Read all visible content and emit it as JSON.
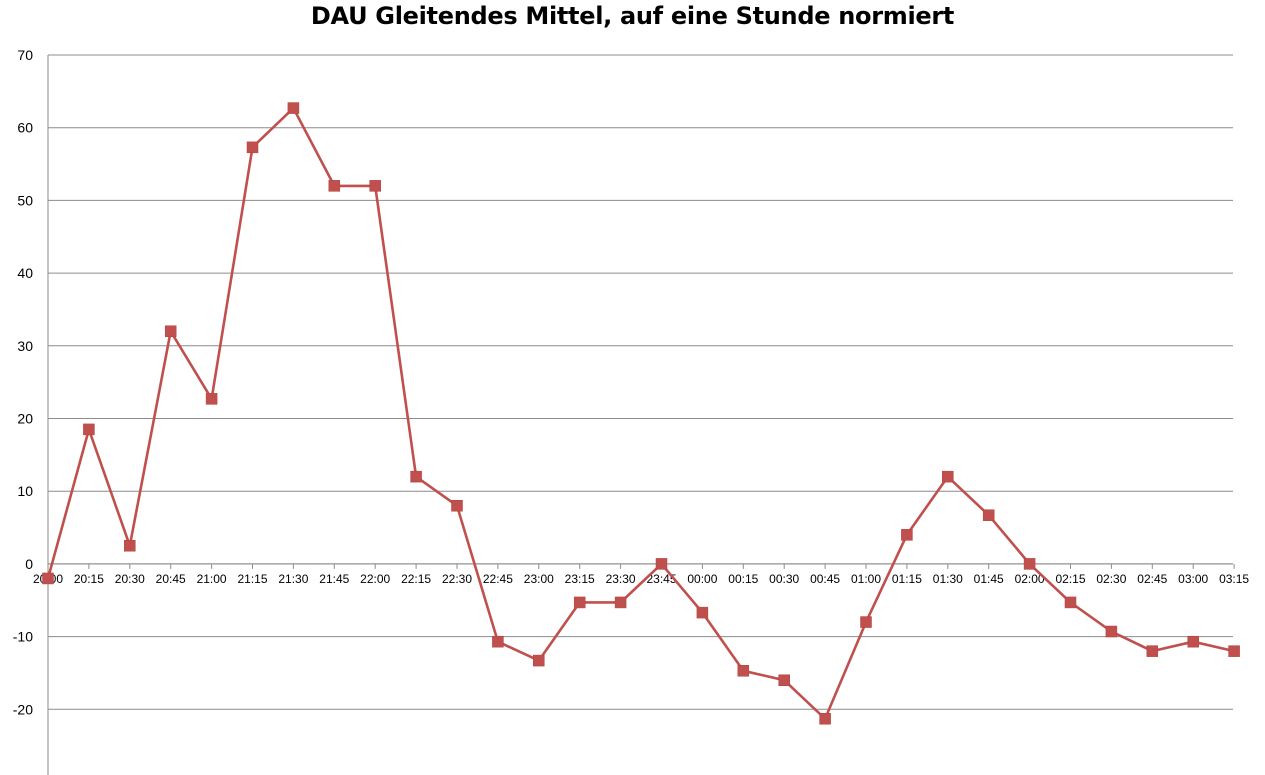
{
  "chart_data": {
    "type": "line",
    "title": "DAU Gleitendes Mittel, auf eine Stunde normiert",
    "xlabel": "",
    "ylabel": "",
    "ylim": [
      -30,
      70
    ],
    "ytick_step": 10,
    "grid": true,
    "legend": "none",
    "categories": [
      "20:00",
      "20:15",
      "20:30",
      "20:45",
      "21:00",
      "21:15",
      "21:30",
      "21:45",
      "22:00",
      "22:15",
      "22:30",
      "22:45",
      "23:00",
      "23:15",
      "23:30",
      "23:45",
      "00:00",
      "00:15",
      "00:30",
      "00:45",
      "01:00",
      "01:15",
      "01:30",
      "01:45",
      "02:00",
      "02:15",
      "02:30",
      "02:45",
      "03:00",
      "03:15"
    ],
    "series": [
      {
        "color": "#c0504d",
        "marker": "square",
        "values": [
          -2,
          18.5,
          2.5,
          32,
          22.7,
          57.3,
          62.7,
          52,
          52,
          12,
          8,
          -10.7,
          -13.3,
          -5.3,
          -5.3,
          0,
          -6.7,
          -14.7,
          -16,
          -21.3,
          -8,
          4,
          12,
          6.7,
          0,
          -5.3,
          -9.3,
          -12,
          -10.7,
          -12
        ]
      }
    ]
  }
}
